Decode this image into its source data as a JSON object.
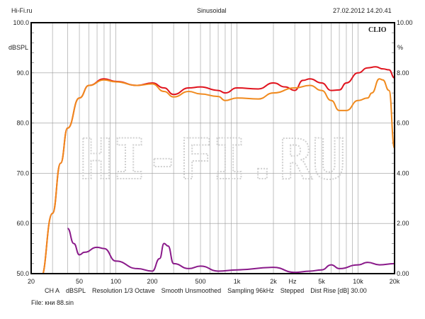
{
  "header": {
    "left": "Hi-Fi.ru",
    "center": "Sinusoidal",
    "right": "27.02.2012 14.20.41"
  },
  "footer": {
    "settings": [
      "CH A",
      "dBSPL",
      "Resolution 1/3 Octave",
      "Smooth Unsmoothed",
      "Sampling 96kHz",
      "Stepped",
      "Dist Rise [dB] 30.00"
    ],
    "file": "File: кни 88.sin"
  },
  "colors": {
    "red": "#e0141e",
    "orange": "#f08a1e",
    "purple": "#8a1a8a"
  },
  "chart_data": {
    "type": "line",
    "brand": "CLIO",
    "watermark": "HI-FI.RU",
    "xlabel": "Hz",
    "ylabel": "dBSPL",
    "y2label": "%",
    "xscale": "log",
    "xlim": [
      20,
      20000
    ],
    "ylim": [
      50,
      100
    ],
    "y2lim": [
      0,
      10
    ],
    "xticks": [
      {
        "v": 20,
        "l": "20"
      },
      {
        "v": 50,
        "l": "50"
      },
      {
        "v": 100,
        "l": "100"
      },
      {
        "v": 200,
        "l": "200"
      },
      {
        "v": 500,
        "l": "500"
      },
      {
        "v": 1000,
        "l": "1k"
      },
      {
        "v": 2000,
        "l": "2k"
      },
      {
        "v": 5000,
        "l": "5k"
      },
      {
        "v": 10000,
        "l": "10k"
      },
      {
        "v": 20000,
        "l": "20k"
      }
    ],
    "yticks": [
      {
        "v": 50,
        "l": "50.0"
      },
      {
        "v": 60,
        "l": "60.0"
      },
      {
        "v": 70,
        "l": "70.0"
      },
      {
        "v": 80,
        "l": "80.0"
      },
      {
        "v": 90,
        "l": "90.0"
      },
      {
        "v": 100,
        "l": "100.0"
      }
    ],
    "y2ticks": [
      {
        "v": 0,
        "l": "0.00"
      },
      {
        "v": 2,
        "l": "2.00"
      },
      {
        "v": 4,
        "l": "4.00"
      },
      {
        "v": 6,
        "l": "6.00"
      },
      {
        "v": 8,
        "l": "8.00"
      },
      {
        "v": 10,
        "l": "10.00"
      }
    ],
    "series": [
      {
        "name": "response-red",
        "axis": "left",
        "color": "#e0141e",
        "points": [
          [
            20,
            50
          ],
          [
            24,
            47
          ],
          [
            30,
            62
          ],
          [
            35,
            72
          ],
          [
            40,
            79
          ],
          [
            50,
            85
          ],
          [
            60,
            87.5
          ],
          [
            80,
            88.8
          ],
          [
            100,
            88.3
          ],
          [
            150,
            87.5
          ],
          [
            200,
            88
          ],
          [
            250,
            87
          ],
          [
            300,
            85.7
          ],
          [
            400,
            87
          ],
          [
            500,
            87.2
          ],
          [
            700,
            86.5
          ],
          [
            800,
            86
          ],
          [
            1000,
            87
          ],
          [
            1500,
            86.8
          ],
          [
            2000,
            88
          ],
          [
            2500,
            87.2
          ],
          [
            3000,
            86.5
          ],
          [
            3500,
            88.5
          ],
          [
            4000,
            88.8
          ],
          [
            5000,
            88
          ],
          [
            6000,
            86.5
          ],
          [
            7000,
            86.6
          ],
          [
            8000,
            88
          ],
          [
            10000,
            90
          ],
          [
            12000,
            91
          ],
          [
            14000,
            91.2
          ],
          [
            16000,
            90.8
          ],
          [
            18000,
            90.6
          ],
          [
            20000,
            89
          ]
        ]
      },
      {
        "name": "response-orange",
        "axis": "left",
        "color": "#f08a1e",
        "points": [
          [
            20,
            50
          ],
          [
            24,
            47
          ],
          [
            30,
            62
          ],
          [
            35,
            72
          ],
          [
            40,
            79
          ],
          [
            50,
            85
          ],
          [
            60,
            87.5
          ],
          [
            80,
            88.6
          ],
          [
            100,
            88.2
          ],
          [
            150,
            87.5
          ],
          [
            200,
            87.8
          ],
          [
            250,
            86.3
          ],
          [
            300,
            85.2
          ],
          [
            400,
            86.3
          ],
          [
            500,
            85.8
          ],
          [
            700,
            85.3
          ],
          [
            800,
            84.5
          ],
          [
            1000,
            85
          ],
          [
            1500,
            84.8
          ],
          [
            2000,
            86
          ],
          [
            3000,
            87
          ],
          [
            4000,
            87.5
          ],
          [
            5000,
            86.5
          ],
          [
            6000,
            84.5
          ],
          [
            7000,
            82.5
          ],
          [
            8000,
            82.5
          ],
          [
            10000,
            84.5
          ],
          [
            12000,
            85
          ],
          [
            13000,
            86
          ],
          [
            15000,
            88.8
          ],
          [
            16000,
            88.6
          ],
          [
            18000,
            86.5
          ],
          [
            20000,
            75
          ]
        ]
      },
      {
        "name": "distortion-purple",
        "axis": "right",
        "color": "#8a1a8a",
        "points": [
          [
            40,
            1.8
          ],
          [
            45,
            1.2
          ],
          [
            50,
            0.75
          ],
          [
            55,
            0.85
          ],
          [
            70,
            1.05
          ],
          [
            80,
            1.0
          ],
          [
            100,
            0.5
          ],
          [
            150,
            0.2
          ],
          [
            200,
            0.1
          ],
          [
            230,
            0.6
          ],
          [
            250,
            1.2
          ],
          [
            270,
            1.1
          ],
          [
            300,
            0.4
          ],
          [
            400,
            0.2
          ],
          [
            500,
            0.3
          ],
          [
            700,
            0.1
          ],
          [
            1000,
            0.15
          ],
          [
            2000,
            0.25
          ],
          [
            3000,
            0.05
          ],
          [
            4000,
            0.1
          ],
          [
            5000,
            0.15
          ],
          [
            6000,
            0.35
          ],
          [
            7000,
            0.2
          ],
          [
            10000,
            0.35
          ],
          [
            12000,
            0.45
          ],
          [
            15000,
            0.35
          ],
          [
            20000,
            0.4
          ]
        ]
      }
    ]
  }
}
